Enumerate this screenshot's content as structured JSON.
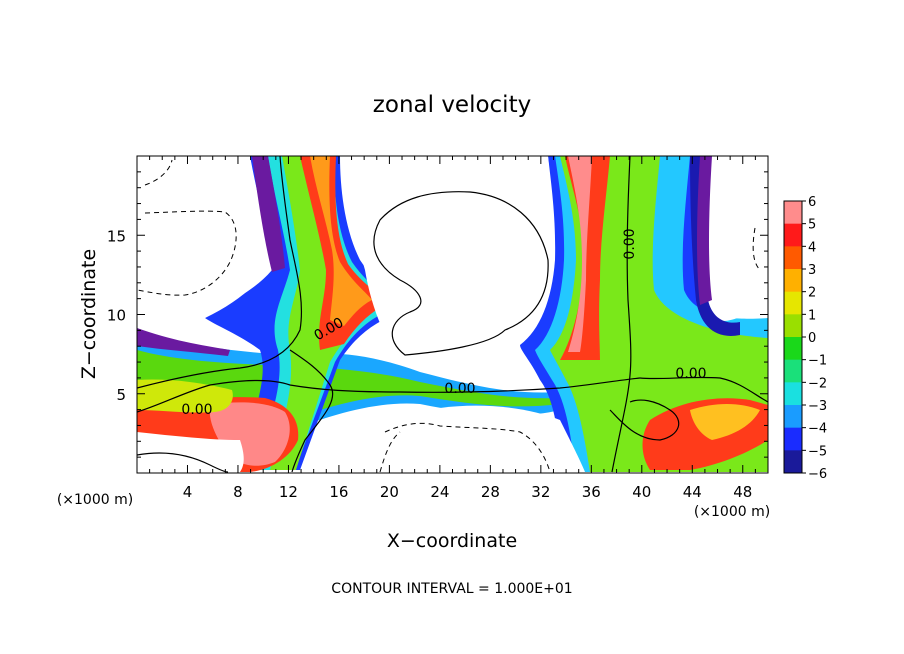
{
  "chart_data": {
    "type": "heatmap",
    "title": "zonal velocity",
    "xlabel": "X−coordinate",
    "ylabel": "Z−coordinate",
    "x_unit_left": "(×1000 m)",
    "x_unit_right": "(×1000 m)",
    "xlim": [
      0,
      50
    ],
    "ylim": [
      0,
      20
    ],
    "xticks": [
      "4",
      "8",
      "12",
      "16",
      "20",
      "24",
      "28",
      "32",
      "36",
      "40",
      "44",
      "48"
    ],
    "yticks": [
      "5",
      "10",
      "15"
    ],
    "colorbar": {
      "ticks": [
        "6",
        "5",
        "4",
        "3",
        "2",
        "1",
        "0",
        "−1",
        "−2",
        "−3",
        "−4",
        "−5",
        "−6"
      ],
      "range": [
        -6,
        6
      ]
    },
    "contour_labels": [
      "0.00",
      "0.00",
      "0.00",
      "0.00",
      "0.00"
    ],
    "footnote": "CONTOUR INTERVAL = 1.000E+01",
    "grid": false
  }
}
